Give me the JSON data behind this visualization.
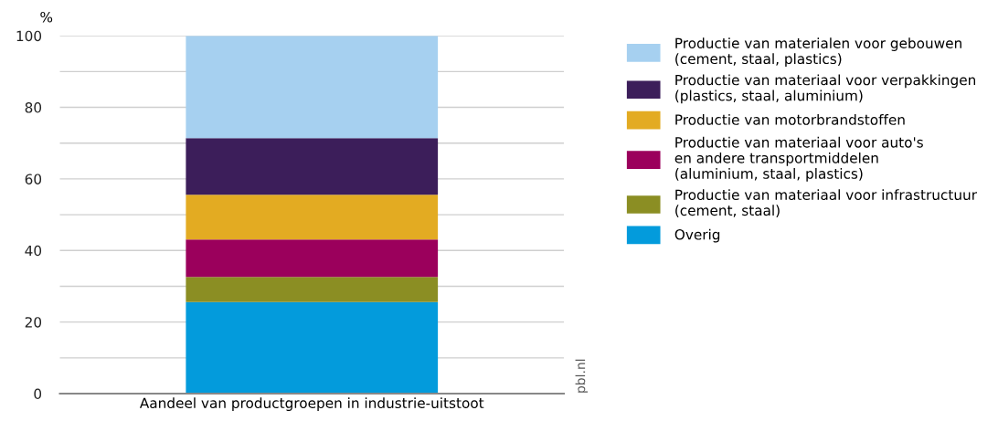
{
  "chart_data": {
    "type": "bar",
    "stacked": true,
    "ylabel": "%",
    "categories": [
      "Aandeel van productgroepen in industrie-uitstoot"
    ],
    "series": [
      {
        "name": "Overig",
        "color": "#039bdc",
        "values": [
          25.6
        ]
      },
      {
        "name": "Productie van materiaal voor infrastructuur\n(cement, staal)",
        "color": "#8b8e23",
        "values": [
          7.0
        ]
      },
      {
        "name": "Productie van materiaal voor auto's\nen andere transportmiddelen\n(aluminium, staal, plastics)",
        "color": "#9b005c",
        "values": [
          10.5
        ]
      },
      {
        "name": "Productie van motorbrandstoffen",
        "color": "#e3ab22",
        "values": [
          12.5
        ]
      },
      {
        "name": "Productie van materiaal voor verpakkingen\n(plastics, staal, aluminium)",
        "color": "#3c1e5a",
        "values": [
          15.8
        ]
      },
      {
        "name": "Productie van materialen voor gebouwen\n(cement, staal, plastics)",
        "color": "#a6d0f0",
        "values": [
          28.6
        ]
      }
    ],
    "ylim": [
      0,
      100
    ],
    "yticks": [
      0,
      {
        "value": 10,
        "label": null
      },
      20,
      {
        "value": 30,
        "label": null
      },
      40,
      {
        "value": 50,
        "label": null
      },
      60,
      {
        "value": 70,
        "label": null
      },
      80,
      {
        "value": 90,
        "label": null
      },
      100
    ],
    "grid": "y",
    "legend": "right",
    "annotations": [
      "pbl.nl"
    ]
  }
}
